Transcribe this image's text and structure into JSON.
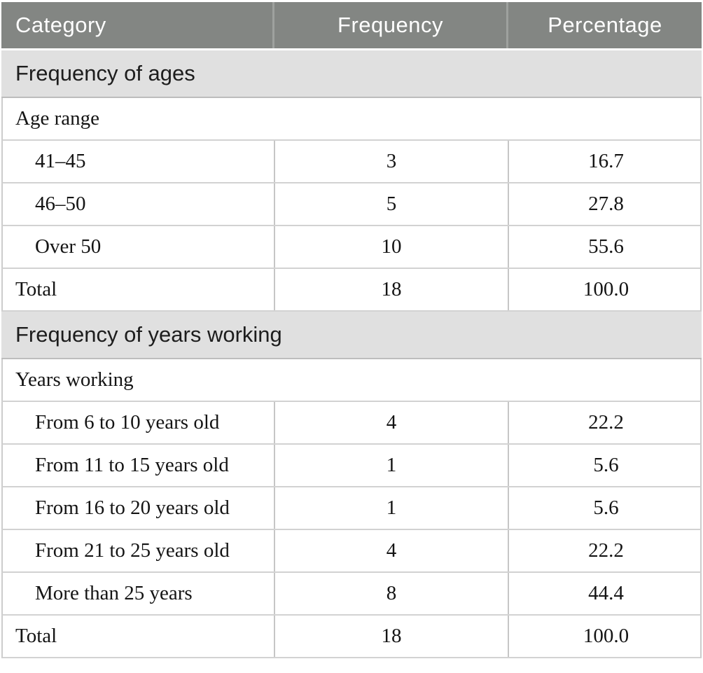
{
  "table": {
    "columns": [
      "Category",
      "Frequency",
      "Percentage"
    ],
    "sections": [
      {
        "title": "Frequency of ages",
        "group_label": "Age range",
        "rows": [
          {
            "label": "41–45",
            "frequency": "3",
            "percentage": "16.7"
          },
          {
            "label": "46–50",
            "frequency": "5",
            "percentage": "27.8"
          },
          {
            "label": "Over 50",
            "frequency": "10",
            "percentage": "55.6"
          }
        ],
        "total": {
          "label": "Total",
          "frequency": "18",
          "percentage": "100.0"
        }
      },
      {
        "title": "Frequency of years working",
        "group_label": "Years working",
        "rows": [
          {
            "label": "From 6 to 10 years old",
            "frequency": "4",
            "percentage": "22.2"
          },
          {
            "label": "From 11 to 15 years old",
            "frequency": "1",
            "percentage": "5.6"
          },
          {
            "label": "From 16 to 20 years old",
            "frequency": "1",
            "percentage": "5.6"
          },
          {
            "label": "From 21 to 25 years old",
            "frequency": "4",
            "percentage": "22.2"
          },
          {
            "label": "More than 25 years",
            "frequency": "8",
            "percentage": "44.4"
          }
        ],
        "total": {
          "label": "Total",
          "frequency": "18",
          "percentage": "100.0"
        }
      }
    ]
  },
  "colors": {
    "header_bg": "#838683",
    "header_text": "#ffffff",
    "header_divider": "#9ea19e",
    "section_bg": "#e0e0e0",
    "section_text": "#1d1d1d",
    "body_text": "#141414",
    "row_border": "#d2d2d2",
    "cell_divider": "#c6c6c6"
  }
}
